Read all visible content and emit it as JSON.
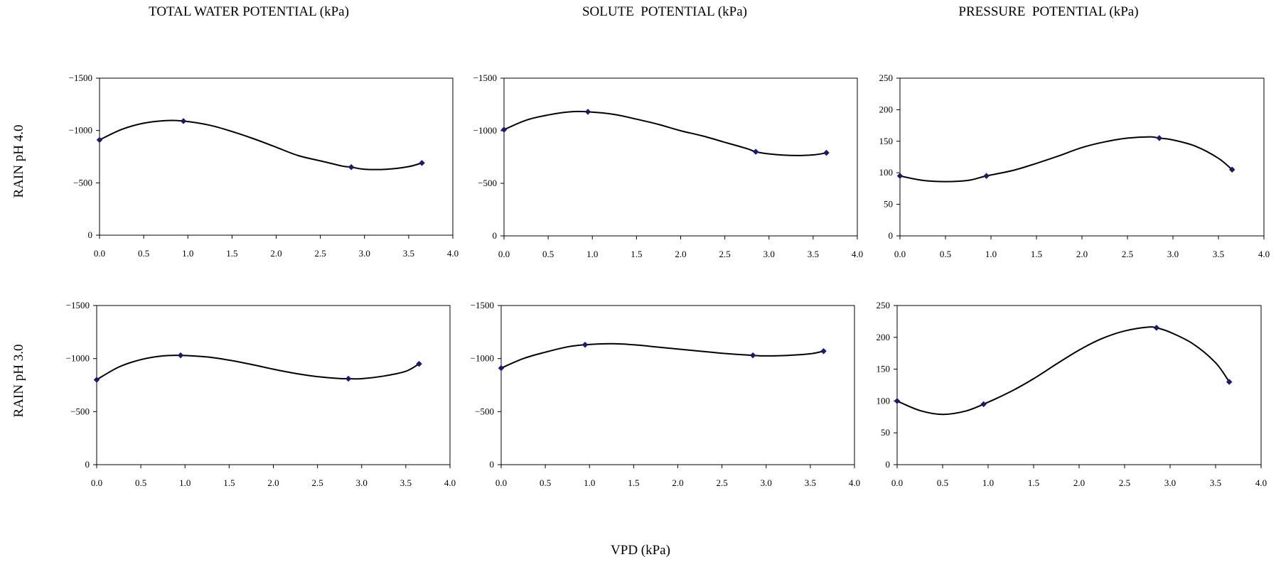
{
  "column_titles": [
    "TOTAL WATER POTENTIAL (kPa)",
    "SOLUTE  POTENTIAL (kPa)",
    "PRESSURE  POTENTIAL (kPa)"
  ],
  "row_titles": [
    "RAIN pH 4.0",
    "RAIN pH 3.0"
  ],
  "shared_xlabel": "VPD (kPa)",
  "colors": {
    "line": "#000000",
    "marker": "#1a1a6e"
  },
  "chart_data": [
    {
      "type": "line",
      "row": "RAIN pH 4.0",
      "column": "TOTAL WATER POTENTIAL (kPa)",
      "xlim": [
        0,
        4
      ],
      "ylim": [
        0,
        -1500
      ],
      "x_ticks": [
        "0.0",
        "0.5",
        "1.0",
        "1.5",
        "2.0",
        "2.5",
        "3.0",
        "3.5",
        "4.0"
      ],
      "y_ticks": [
        "0",
        "−500",
        "−1000",
        "−1500"
      ],
      "series": [
        {
          "x": [
            0.0,
            0.95,
            2.85,
            3.65
          ],
          "y": [
            -910,
            -1090,
            -650,
            -690
          ]
        }
      ],
      "trend": [
        [
          0,
          -910
        ],
        [
          0.25,
          -1010
        ],
        [
          0.5,
          -1070
        ],
        [
          0.75,
          -1095
        ],
        [
          0.95,
          -1090
        ],
        [
          1.25,
          -1050
        ],
        [
          1.5,
          -990
        ],
        [
          1.75,
          -920
        ],
        [
          2.0,
          -840
        ],
        [
          2.25,
          -760
        ],
        [
          2.5,
          -710
        ],
        [
          2.75,
          -660
        ],
        [
          2.85,
          -650
        ],
        [
          3.0,
          -630
        ],
        [
          3.25,
          -630
        ],
        [
          3.5,
          -655
        ],
        [
          3.65,
          -690
        ]
      ]
    },
    {
      "type": "line",
      "row": "RAIN pH 4.0",
      "column": "SOLUTE  POTENTIAL (kPa)",
      "xlim": [
        0,
        4
      ],
      "ylim": [
        0,
        -1500
      ],
      "x_ticks": [
        "0.0",
        "0.5",
        "1.0",
        "1.5",
        "2.0",
        "2.5",
        "3.0",
        "3.5",
        "4.0"
      ],
      "y_ticks": [
        "0",
        "−500",
        "−1000",
        "−1500"
      ],
      "series": [
        {
          "x": [
            0.0,
            0.95,
            2.85,
            3.65
          ],
          "y": [
            -1010,
            -1180,
            -800,
            -790
          ]
        }
      ],
      "trend": [
        [
          0,
          -1010
        ],
        [
          0.25,
          -1100
        ],
        [
          0.5,
          -1150
        ],
        [
          0.75,
          -1180
        ],
        [
          0.95,
          -1180
        ],
        [
          1.25,
          -1155
        ],
        [
          1.5,
          -1110
        ],
        [
          1.75,
          -1060
        ],
        [
          2.0,
          -1000
        ],
        [
          2.25,
          -950
        ],
        [
          2.5,
          -890
        ],
        [
          2.75,
          -830
        ],
        [
          2.85,
          -800
        ],
        [
          3.0,
          -780
        ],
        [
          3.25,
          -765
        ],
        [
          3.5,
          -770
        ],
        [
          3.65,
          -790
        ]
      ]
    },
    {
      "type": "line",
      "row": "RAIN pH 4.0",
      "column": "PRESSURE  POTENTIAL (kPa)",
      "xlim": [
        0,
        4
      ],
      "ylim": [
        0,
        250
      ],
      "x_ticks": [
        "0.0",
        "0.5",
        "1.0",
        "1.5",
        "2.0",
        "2.5",
        "3.0",
        "3.5",
        "4.0"
      ],
      "y_ticks": [
        "0",
        "50",
        "100",
        "150",
        "200",
        "250"
      ],
      "series": [
        {
          "x": [
            0.0,
            0.95,
            2.85,
            3.65
          ],
          "y": [
            95,
            95,
            155,
            105
          ]
        }
      ],
      "trend": [
        [
          0,
          95
        ],
        [
          0.25,
          88
        ],
        [
          0.5,
          86
        ],
        [
          0.75,
          88
        ],
        [
          0.95,
          95
        ],
        [
          1.25,
          104
        ],
        [
          1.5,
          115
        ],
        [
          1.75,
          127
        ],
        [
          2.0,
          140
        ],
        [
          2.25,
          149
        ],
        [
          2.5,
          155
        ],
        [
          2.75,
          157
        ],
        [
          2.85,
          155
        ],
        [
          3.0,
          152
        ],
        [
          3.25,
          142
        ],
        [
          3.5,
          123
        ],
        [
          3.65,
          105
        ]
      ]
    },
    {
      "type": "line",
      "row": "RAIN pH 3.0",
      "column": "TOTAL WATER POTENTIAL (kPa)",
      "xlim": [
        0,
        4
      ],
      "ylim": [
        0,
        -1500
      ],
      "x_ticks": [
        "0.0",
        "0.5",
        "1.0",
        "1.5",
        "2.0",
        "2.5",
        "3.0",
        "3.5",
        "4.0"
      ],
      "y_ticks": [
        "0",
        "−500",
        "−1000",
        "−1500"
      ],
      "series": [
        {
          "x": [
            0.0,
            0.95,
            2.85,
            3.65
          ],
          "y": [
            -800,
            -1030,
            -810,
            -950
          ]
        }
      ],
      "trend": [
        [
          0,
          -800
        ],
        [
          0.25,
          -920
        ],
        [
          0.5,
          -990
        ],
        [
          0.75,
          -1025
        ],
        [
          0.95,
          -1030
        ],
        [
          1.25,
          -1015
        ],
        [
          1.5,
          -985
        ],
        [
          1.75,
          -945
        ],
        [
          2.0,
          -900
        ],
        [
          2.25,
          -860
        ],
        [
          2.5,
          -830
        ],
        [
          2.75,
          -812
        ],
        [
          2.85,
          -810
        ],
        [
          3.0,
          -810
        ],
        [
          3.25,
          -835
        ],
        [
          3.5,
          -880
        ],
        [
          3.65,
          -950
        ]
      ]
    },
    {
      "type": "line",
      "row": "RAIN pH 3.0",
      "column": "SOLUTE  POTENTIAL (kPa)",
      "xlim": [
        0,
        4
      ],
      "ylim": [
        0,
        -1500
      ],
      "x_ticks": [
        "0.0",
        "0.5",
        "1.0",
        "1.5",
        "2.0",
        "2.5",
        "3.0",
        "3.5",
        "4.0"
      ],
      "y_ticks": [
        "0",
        "−500",
        "−1000",
        "−1500"
      ],
      "series": [
        {
          "x": [
            0.0,
            0.95,
            2.85,
            3.65
          ],
          "y": [
            -910,
            -1130,
            -1030,
            -1070
          ]
        }
      ],
      "trend": [
        [
          0,
          -910
        ],
        [
          0.25,
          -1000
        ],
        [
          0.5,
          -1060
        ],
        [
          0.75,
          -1110
        ],
        [
          0.95,
          -1130
        ],
        [
          1.25,
          -1140
        ],
        [
          1.5,
          -1130
        ],
        [
          1.75,
          -1110
        ],
        [
          2.0,
          -1090
        ],
        [
          2.25,
          -1070
        ],
        [
          2.5,
          -1050
        ],
        [
          2.75,
          -1035
        ],
        [
          2.85,
          -1030
        ],
        [
          3.0,
          -1025
        ],
        [
          3.25,
          -1030
        ],
        [
          3.5,
          -1045
        ],
        [
          3.65,
          -1070
        ]
      ]
    },
    {
      "type": "line",
      "row": "RAIN pH 3.0",
      "column": "PRESSURE  POTENTIAL (kPa)",
      "xlim": [
        0,
        4
      ],
      "ylim": [
        0,
        250
      ],
      "x_ticks": [
        "0.0",
        "0.5",
        "1.0",
        "1.5",
        "2.0",
        "2.5",
        "3.0",
        "3.5",
        "4.0"
      ],
      "y_ticks": [
        "0",
        "50",
        "100",
        "150",
        "200",
        "250"
      ],
      "series": [
        {
          "x": [
            0.0,
            0.95,
            2.85,
            3.65
          ],
          "y": [
            100,
            95,
            215,
            130
          ]
        }
      ],
      "trend": [
        [
          0,
          100
        ],
        [
          0.25,
          85
        ],
        [
          0.5,
          79
        ],
        [
          0.75,
          84
        ],
        [
          0.95,
          95
        ],
        [
          1.25,
          115
        ],
        [
          1.5,
          135
        ],
        [
          1.75,
          158
        ],
        [
          2.0,
          180
        ],
        [
          2.25,
          198
        ],
        [
          2.5,
          210
        ],
        [
          2.75,
          216
        ],
        [
          2.85,
          215
        ],
        [
          3.0,
          208
        ],
        [
          3.25,
          190
        ],
        [
          3.5,
          160
        ],
        [
          3.65,
          130
        ]
      ]
    }
  ]
}
